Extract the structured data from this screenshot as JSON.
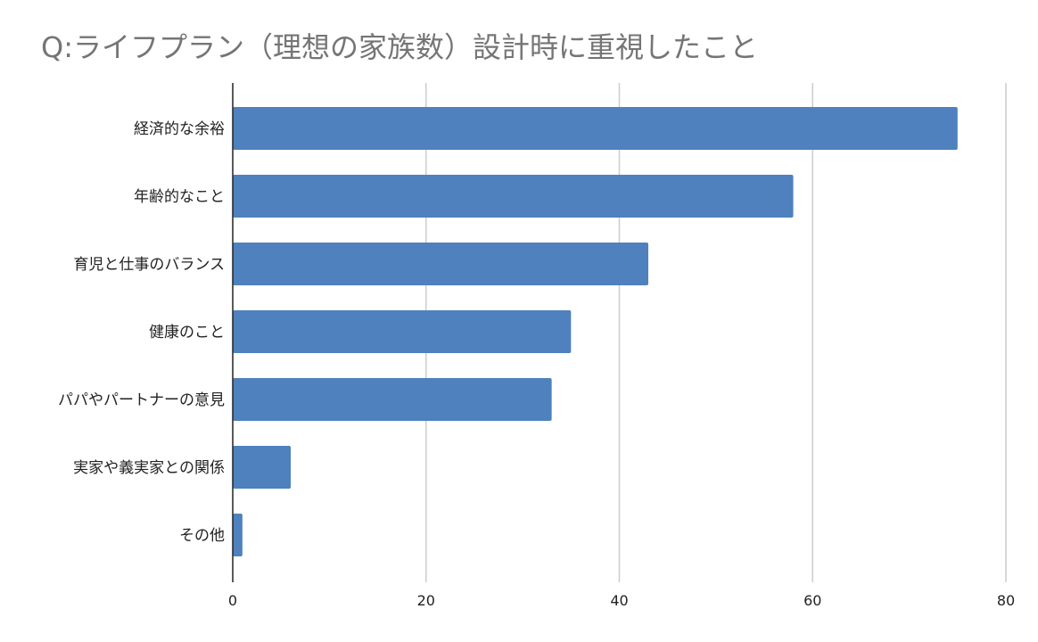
{
  "chart_data": {
    "type": "bar",
    "orientation": "horizontal",
    "title": "Q:ライフプラン（理想の家族数）設計時に重視したこと",
    "categories": [
      "経済的な余裕",
      "年齢的なこと",
      "育児と仕事のバランス",
      "健康のこと",
      "パパやパートナーの意見",
      "実家や義実家との関係",
      "その他"
    ],
    "values": [
      75,
      58,
      43,
      35,
      33,
      6,
      1
    ],
    "xlim": [
      0,
      80
    ],
    "xticks": [
      "0",
      "20",
      "40",
      "60",
      "80"
    ],
    "grid": true,
    "legend": "none",
    "bar_color": "#4e81bd",
    "grid_color": "#cccccc",
    "axis_color": "#222222"
  }
}
